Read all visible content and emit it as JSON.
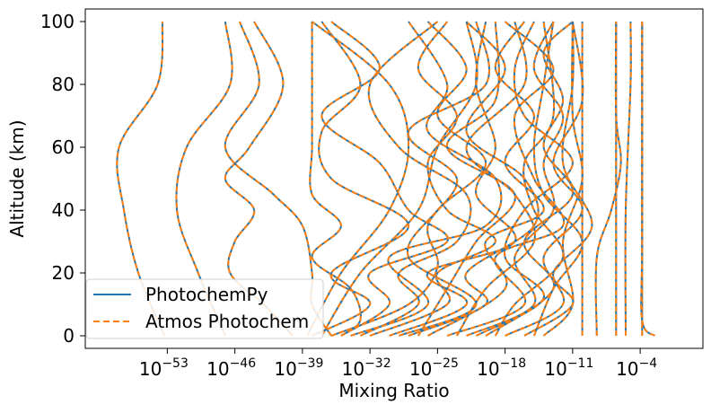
{
  "chart_data": {
    "type": "line",
    "title": "",
    "xlabel": "Mixing Ratio",
    "ylabel": "Altitude (km)",
    "x_scale": "log",
    "xlim_log10": [
      -61.5,
      2.5
    ],
    "ylim": [
      -4,
      104
    ],
    "grid": false,
    "legend_placement": "lower-left",
    "x_ticks": [
      {
        "exp": -53,
        "label_base": "10",
        "label_exp": "−53"
      },
      {
        "exp": -46,
        "label_base": "10",
        "label_exp": "−46"
      },
      {
        "exp": -39,
        "label_base": "10",
        "label_exp": "−39"
      },
      {
        "exp": -32,
        "label_base": "10",
        "label_exp": "−32"
      },
      {
        "exp": -25,
        "label_base": "10",
        "label_exp": "−25"
      },
      {
        "exp": -18,
        "label_base": "10",
        "label_exp": "−18"
      },
      {
        "exp": -11,
        "label_base": "10",
        "label_exp": "−11"
      },
      {
        "exp": -4,
        "label_base": "10",
        "label_exp": "−4"
      }
    ],
    "y_ticks": [
      0,
      20,
      40,
      60,
      80,
      100
    ],
    "series": [
      {
        "name": "PhotochemPy",
        "color": "#1f77b4",
        "style": "solid"
      },
      {
        "name": "Atmos Photochem",
        "color": "#ff7f0e",
        "style": "dashed"
      }
    ],
    "species_profiles_log10": [
      [
        [
          0,
          -53.3
        ],
        [
          20,
          -56
        ],
        [
          40,
          -57.5
        ],
        [
          60,
          -58
        ],
        [
          80,
          -54
        ],
        [
          100,
          -53.5
        ]
      ],
      [
        [
          0,
          -47
        ],
        [
          20,
          -49.8
        ],
        [
          40,
          -52
        ],
        [
          60,
          -51
        ],
        [
          80,
          -46.5
        ],
        [
          100,
          -47
        ]
      ],
      [
        [
          0,
          -40
        ],
        [
          10,
          -43
        ],
        [
          20,
          -46.5
        ],
        [
          30,
          -46
        ],
        [
          40,
          -44
        ],
        [
          50,
          -47
        ],
        [
          60,
          -44.5
        ],
        [
          80,
          -41
        ],
        [
          100,
          -44
        ]
      ],
      [
        [
          0,
          -36
        ],
        [
          10,
          -38
        ],
        [
          20,
          -38
        ],
        [
          35,
          -39
        ],
        [
          45,
          -42
        ],
        [
          60,
          -47
        ],
        [
          80,
          -43.5
        ],
        [
          100,
          -45.5
        ]
      ],
      [
        [
          0,
          -35
        ],
        [
          5,
          -33
        ],
        [
          15,
          -34
        ],
        [
          25,
          -38
        ],
        [
          35,
          -35
        ],
        [
          45,
          -38
        ],
        [
          60,
          -38
        ],
        [
          80,
          -38
        ],
        [
          100,
          -38
        ]
      ],
      [
        [
          0,
          -38
        ],
        [
          10,
          -32
        ],
        [
          20,
          -36
        ],
        [
          35,
          -28
        ],
        [
          50,
          -36
        ],
        [
          65,
          -37
        ],
        [
          80,
          -33
        ],
        [
          100,
          -37
        ]
      ],
      [
        [
          0,
          -35
        ],
        [
          10,
          -30
        ],
        [
          20,
          -32
        ],
        [
          30,
          -24
        ],
        [
          40,
          -28
        ],
        [
          55,
          -31
        ],
        [
          70,
          -37
        ],
        [
          85,
          -31
        ],
        [
          100,
          -36
        ]
      ],
      [
        [
          0,
          -33
        ],
        [
          10,
          -27
        ],
        [
          20,
          -29
        ],
        [
          30,
          -23
        ],
        [
          45,
          -22
        ],
        [
          60,
          -29
        ],
        [
          80,
          -32
        ],
        [
          100,
          -25
        ]
      ],
      [
        [
          0,
          -34
        ],
        [
          10,
          -26
        ],
        [
          25,
          -30
        ],
        [
          35,
          -20
        ],
        [
          50,
          -19
        ],
        [
          65,
          -26
        ],
        [
          80,
          -24
        ],
        [
          100,
          -28
        ]
      ],
      [
        [
          0,
          -30
        ],
        [
          10,
          -22
        ],
        [
          20,
          -26
        ],
        [
          30,
          -17
        ],
        [
          45,
          -21
        ],
        [
          60,
          -19
        ],
        [
          80,
          -21
        ],
        [
          100,
          -20
        ]
      ],
      [
        [
          0,
          -28
        ],
        [
          10,
          -20
        ],
        [
          20,
          -22
        ],
        [
          35,
          -15
        ],
        [
          50,
          -16
        ],
        [
          65,
          -22
        ],
        [
          85,
          -18
        ],
        [
          100,
          -22
        ]
      ],
      [
        [
          0,
          -26
        ],
        [
          15,
          -18
        ],
        [
          30,
          -20
        ],
        [
          40,
          -14
        ],
        [
          55,
          -18
        ],
        [
          70,
          -15
        ],
        [
          85,
          -19
        ],
        [
          100,
          -16
        ]
      ],
      [
        [
          0,
          -24
        ],
        [
          10,
          -16
        ],
        [
          25,
          -19
        ],
        [
          35,
          -12
        ],
        [
          50,
          -15
        ],
        [
          70,
          -17
        ],
        [
          85,
          -13
        ],
        [
          100,
          -18
        ]
      ],
      [
        [
          0,
          -22
        ],
        [
          10,
          -15
        ],
        [
          25,
          -17
        ],
        [
          40,
          -13
        ],
        [
          55,
          -14
        ],
        [
          70,
          -12
        ],
        [
          85,
          -15
        ],
        [
          100,
          -13
        ]
      ],
      [
        [
          0,
          -20
        ],
        [
          15,
          -13
        ],
        [
          30,
          -16
        ],
        [
          45,
          -11
        ],
        [
          60,
          -14
        ],
        [
          75,
          -12
        ],
        [
          90,
          -14
        ],
        [
          100,
          -11
        ]
      ],
      [
        [
          0,
          -18
        ],
        [
          10,
          -12
        ],
        [
          25,
          -14
        ],
        [
          40,
          -10
        ],
        [
          55,
          -13
        ],
        [
          75,
          -10
        ],
        [
          100,
          -11
        ]
      ],
      [
        [
          0,
          -16
        ],
        [
          10,
          -11
        ],
        [
          20,
          -13
        ],
        [
          35,
          -9
        ],
        [
          55,
          -12
        ],
        [
          80,
          -11
        ],
        [
          100,
          -11
        ]
      ],
      [
        [
          0,
          -14
        ],
        [
          10,
          -11
        ],
        [
          30,
          -12
        ],
        [
          50,
          -10
        ],
        [
          70,
          -11
        ],
        [
          100,
          -11
        ]
      ],
      [
        [
          0,
          -32
        ],
        [
          10,
          -24
        ],
        [
          20,
          -25
        ],
        [
          30,
          -19
        ],
        [
          40,
          -24
        ],
        [
          55,
          -26
        ],
        [
          70,
          -23
        ],
        [
          85,
          -27
        ],
        [
          100,
          -24
        ]
      ],
      [
        [
          0,
          -29
        ],
        [
          10,
          -21
        ],
        [
          25,
          -28
        ],
        [
          40,
          -25
        ],
        [
          55,
          -20
        ],
        [
          70,
          -25
        ],
        [
          85,
          -22
        ],
        [
          100,
          -26
        ]
      ],
      [
        [
          0,
          -36
        ],
        [
          10,
          -28
        ],
        [
          22,
          -25
        ],
        [
          35,
          -26
        ],
        [
          50,
          -23
        ],
        [
          65,
          -28
        ],
        [
          80,
          -20
        ],
        [
          100,
          -21
        ]
      ],
      [
        [
          0,
          -27
        ],
        [
          15,
          -24
        ],
        [
          30,
          -21
        ],
        [
          45,
          -17
        ],
        [
          60,
          -24
        ],
        [
          75,
          -19
        ],
        [
          100,
          -19
        ]
      ],
      [
        [
          0,
          -23
        ],
        [
          15,
          -20
        ],
        [
          30,
          -15
        ],
        [
          45,
          -17
        ],
        [
          60,
          -22
        ],
        [
          80,
          -16
        ],
        [
          100,
          -17
        ]
      ],
      [
        [
          0,
          -21
        ],
        [
          12,
          -14
        ],
        [
          25,
          -18
        ],
        [
          40,
          -16
        ],
        [
          55,
          -11
        ],
        [
          70,
          -16
        ],
        [
          85,
          -17
        ],
        [
          100,
          -15
        ]
      ],
      [
        [
          0,
          -19
        ],
        [
          10,
          -17
        ],
        [
          25,
          -12
        ],
        [
          40,
          -15
        ],
        [
          55,
          -16
        ],
        [
          70,
          -13
        ],
        [
          100,
          -14
        ]
      ],
      [
        [
          0,
          -15
        ],
        [
          15,
          -13
        ],
        [
          30,
          -10
        ],
        [
          45,
          -14
        ],
        [
          60,
          -15
        ],
        [
          80,
          -14
        ],
        [
          100,
          -13
        ]
      ],
      [
        [
          0,
          -38.5
        ],
        [
          20,
          -35
        ],
        [
          40,
          -30
        ],
        [
          60,
          -28
        ],
        [
          80,
          -30
        ],
        [
          100,
          -38
        ]
      ],
      [
        [
          0,
          -37
        ],
        [
          20,
          -33
        ],
        [
          40,
          -27
        ],
        [
          60,
          -25
        ],
        [
          80,
          -21
        ],
        [
          100,
          -22
        ]
      ],
      [
        [
          0,
          -6.5
        ],
        [
          25,
          -6.5
        ],
        [
          45,
          -6.5
        ],
        [
          70,
          -6.5
        ],
        [
          100,
          -6.5
        ]
      ],
      [
        [
          0,
          -8.5
        ],
        [
          25,
          -8.5
        ],
        [
          40,
          -7
        ],
        [
          55,
          -6
        ],
        [
          70,
          -6.5
        ],
        [
          100,
          -6.5
        ]
      ],
      [
        [
          0,
          -3.8
        ],
        [
          100,
          -3.8
        ]
      ],
      [
        [
          0,
          -5.5
        ],
        [
          40,
          -5.5
        ],
        [
          80,
          -5
        ],
        [
          100,
          -5
        ]
      ],
      [
        [
          0,
          -2.5
        ],
        [
          5,
          -3.8
        ],
        [
          30,
          -3.8
        ],
        [
          100,
          -3.8
        ]
      ],
      [
        [
          0,
          -10
        ],
        [
          30,
          -10
        ],
        [
          60,
          -10
        ],
        [
          100,
          -10
        ]
      ]
    ]
  }
}
